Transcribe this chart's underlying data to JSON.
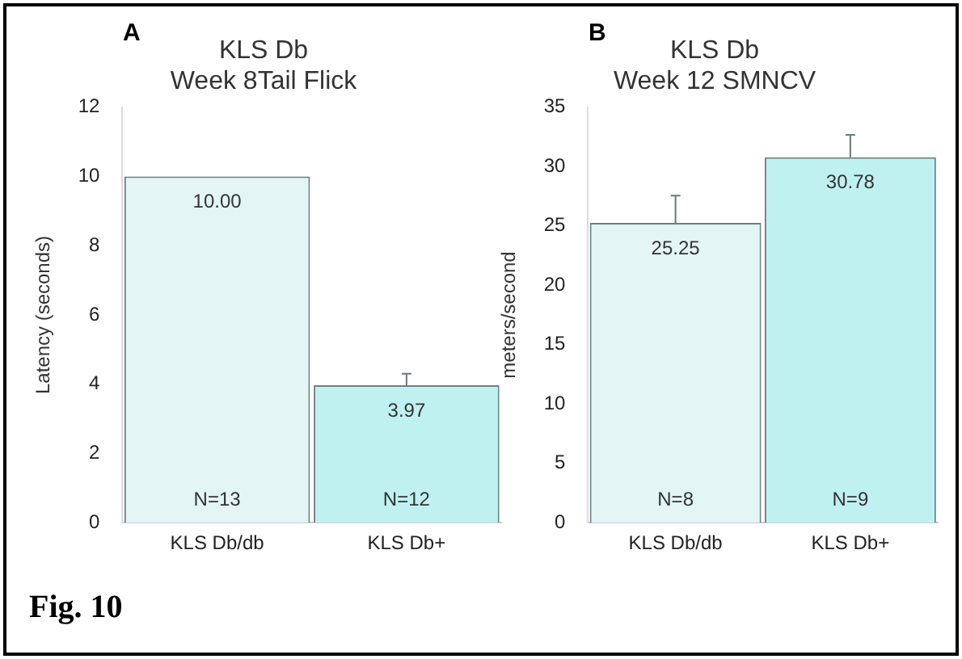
{
  "chart_data": [
    {
      "type": "bar",
      "title": "KLS Db",
      "subtitle": "Week 8Tail Flick",
      "ylabel": "Latency (seconds)",
      "categories": [
        "KLS Db/db",
        "KLS Db+"
      ],
      "values": [
        10.0,
        3.97
      ],
      "colors": [
        "#e3f5f5",
        "#c0f1f1"
      ],
      "errors": [
        null,
        0.33
      ],
      "value_labels": [
        "10.00",
        "3.97"
      ],
      "ylim": [
        0,
        12
      ],
      "yticks": [
        0,
        2,
        4,
        6,
        8,
        10,
        12
      ],
      "grid": false,
      "legend": false,
      "annotations": [
        "A",
        "Fig. 10",
        {
          "text": "N=13",
          "x": "KLS Db/db",
          "y": 0
        },
        {
          "text": "N=12",
          "x": "KLS Db+",
          "y": 0
        }
      ]
    },
    {
      "type": "bar",
      "title": "KLS Db",
      "subtitle": "Week 12 SMNCV",
      "ylabel": "meters/second",
      "categories": [
        "KLS Db/db",
        "KLS Db+"
      ],
      "values": [
        25.25,
        30.78
      ],
      "colors": [
        "#e3f5f5",
        "#c0f1f1"
      ],
      "errors": [
        2.3,
        1.9
      ],
      "value_labels": [
        "25.25",
        "30.78"
      ],
      "ylim": [
        0,
        35
      ],
      "yticks": [
        0,
        5,
        10,
        15,
        20,
        25,
        30,
        35
      ],
      "grid": false,
      "legend": false,
      "annotations": [
        "B",
        {
          "text": "N=8",
          "x": "KLS Db/db",
          "y": 0
        },
        {
          "text": "N=9",
          "x": "KLS Db+",
          "y": 0
        }
      ]
    }
  ]
}
